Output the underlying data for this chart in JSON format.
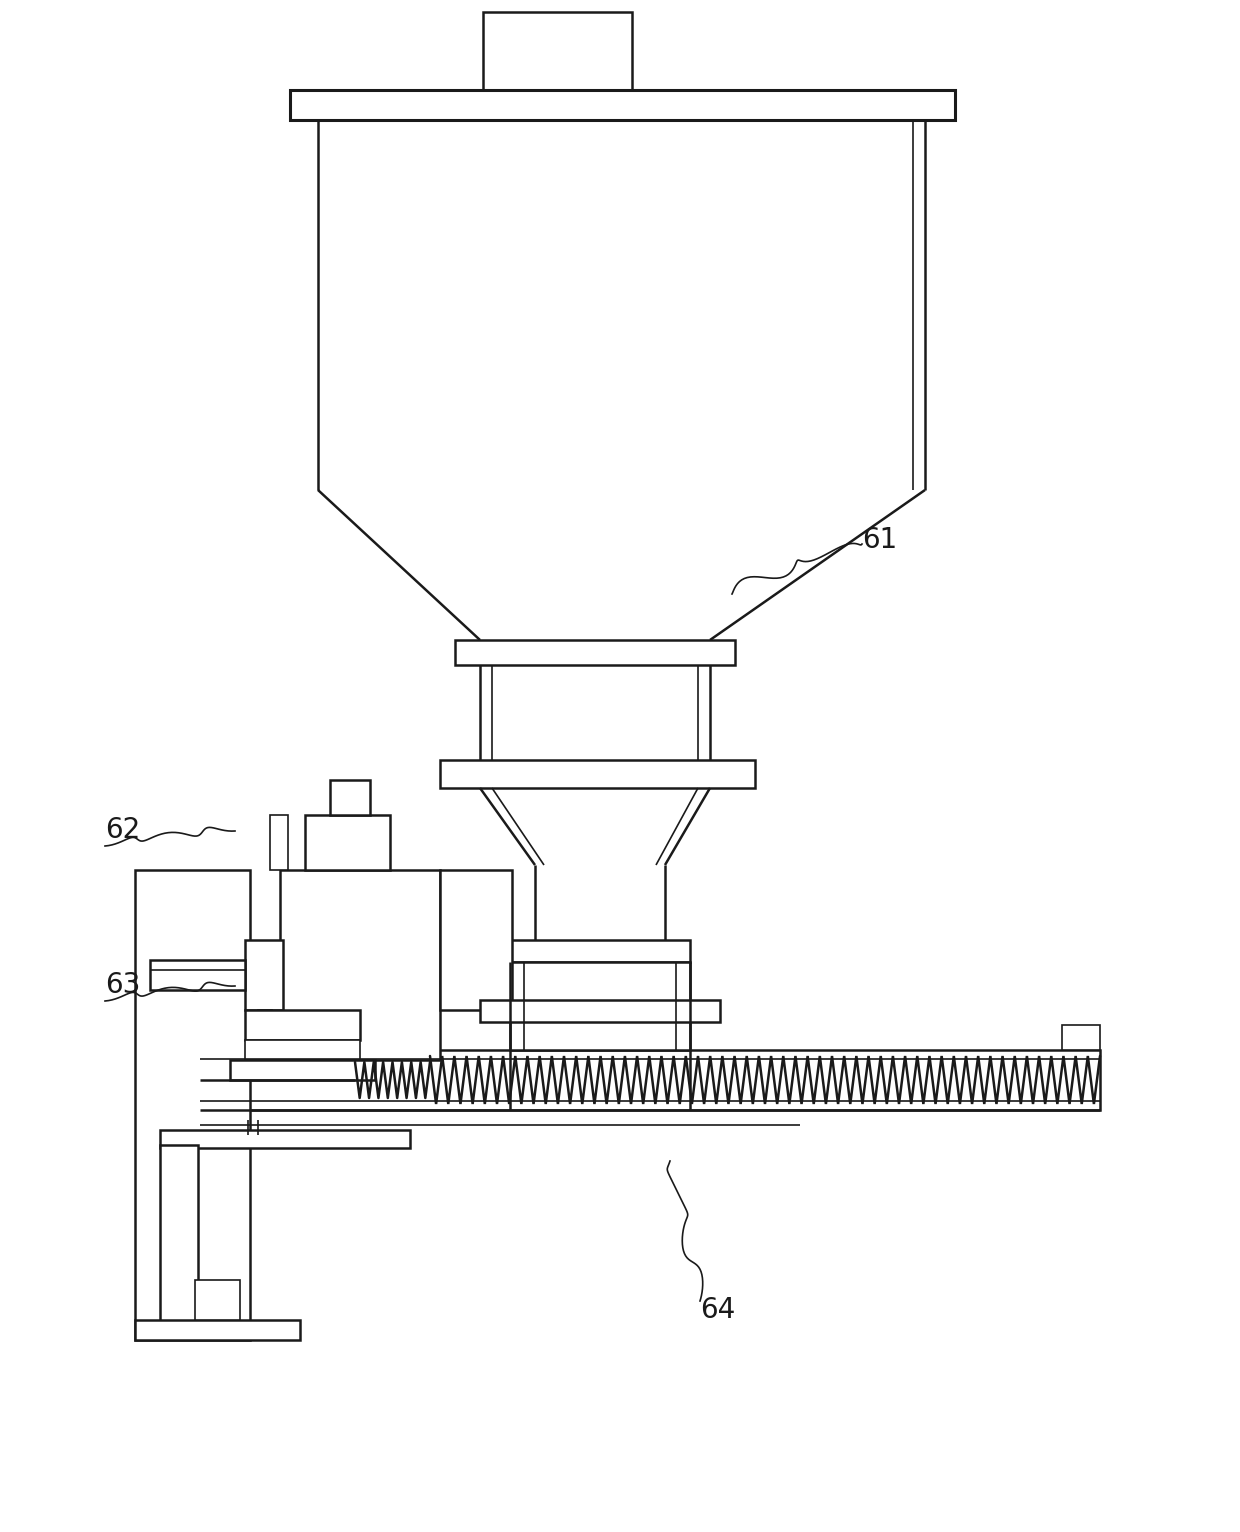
{
  "bg_color": "#ffffff",
  "line_color": "#1a1a1a",
  "lw_thin": 1.2,
  "lw_med": 1.8,
  "lw_thick": 2.2,
  "label_fontsize": 20,
  "figw": 12.4,
  "figh": 15.32,
  "dpi": 100
}
